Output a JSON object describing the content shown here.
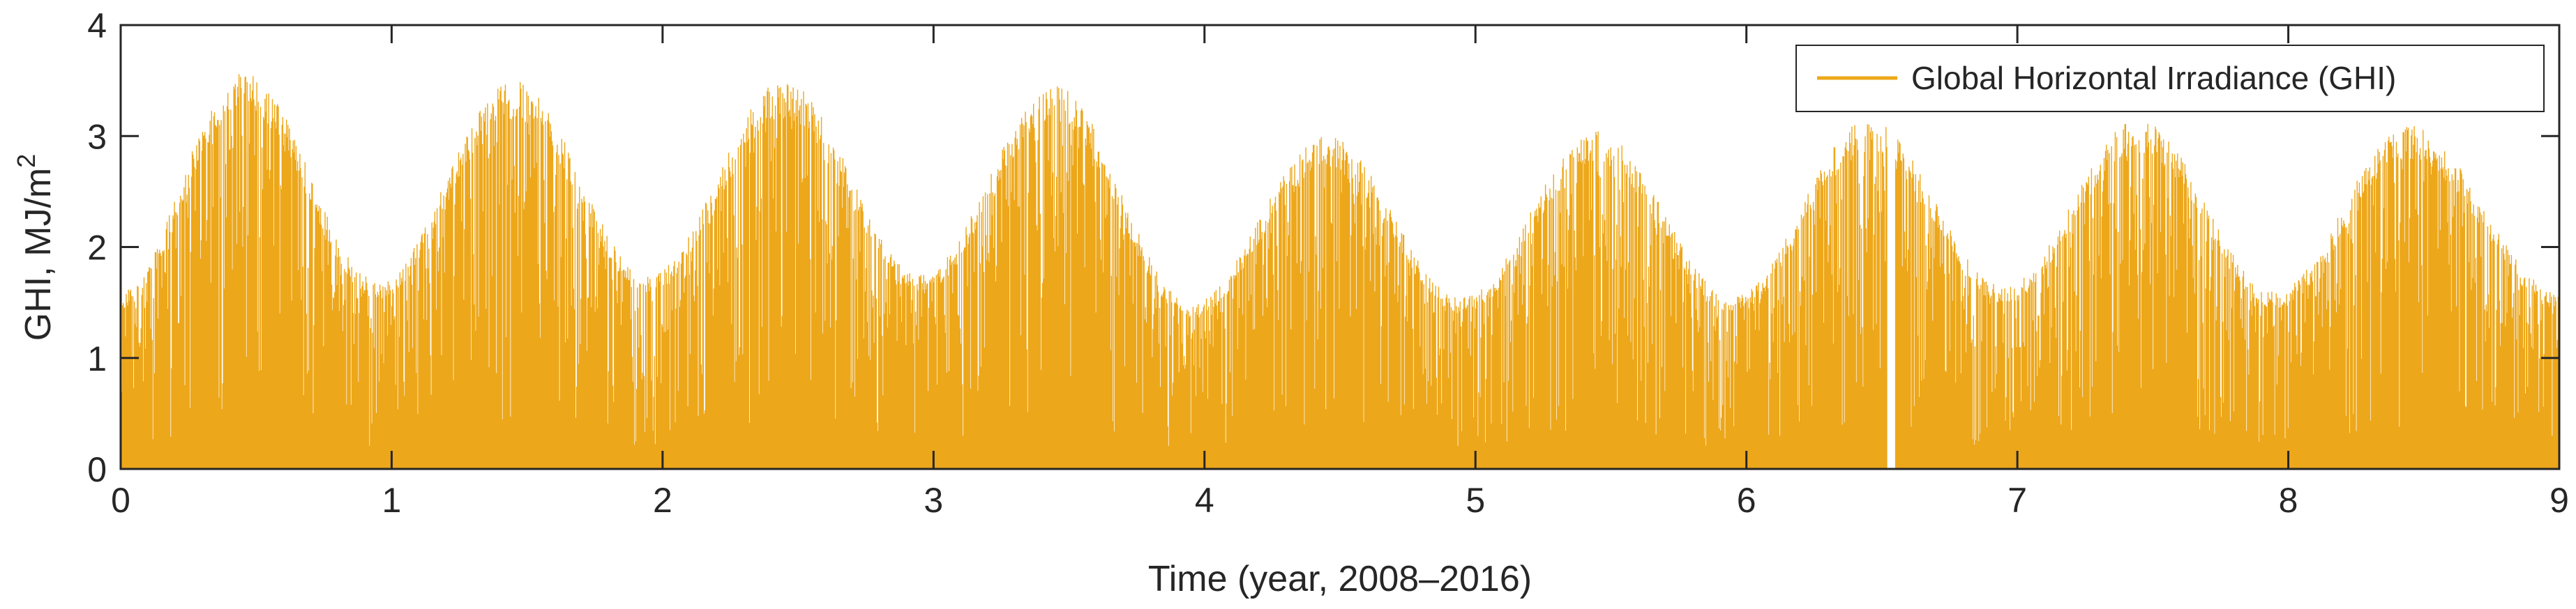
{
  "chart_data": {
    "type": "area",
    "title": "",
    "xlabel": "Time (year, 2008–2016)",
    "ylabel": {
      "main": "GHI, MJ/m",
      "superscript": "2"
    },
    "xlim": [
      0,
      9
    ],
    "ylim": [
      0,
      4
    ],
    "xticks": [
      "0",
      "1",
      "2",
      "3",
      "4",
      "5",
      "6",
      "7",
      "8",
      "9"
    ],
    "yticks": [
      "0",
      "1",
      "2",
      "3",
      "4"
    ],
    "grid": false,
    "legend_position": "top-right",
    "series": [
      {
        "name": "Global Horizontal Irradiance (GHI)",
        "color": "#EDA71A",
        "envelope_peaks": [
          {
            "year": 0.45,
            "value": 3.6
          },
          {
            "year": 1.45,
            "value": 3.5
          },
          {
            "year": 2.45,
            "value": 3.5
          },
          {
            "year": 3.45,
            "value": 3.45
          },
          {
            "year": 4.45,
            "value": 3.0
          },
          {
            "year": 5.45,
            "value": 3.05
          },
          {
            "year": 6.45,
            "value": 3.15
          },
          {
            "year": 7.45,
            "value": 3.15
          },
          {
            "year": 8.45,
            "value": 3.1
          }
        ],
        "envelope_troughs": [
          {
            "year": 0.0,
            "value": 1.6
          },
          {
            "year": 0.95,
            "value": 1.7
          },
          {
            "year": 1.95,
            "value": 1.75
          },
          {
            "year": 2.95,
            "value": 1.75
          },
          {
            "year": 3.95,
            "value": 1.5
          },
          {
            "year": 4.95,
            "value": 1.55
          },
          {
            "year": 5.95,
            "value": 1.55
          },
          {
            "year": 6.95,
            "value": 1.65
          },
          {
            "year": 7.95,
            "value": 1.6
          },
          {
            "year": 9.0,
            "value": 1.6
          }
        ],
        "data_gaps": [
          {
            "start_year": 6.52,
            "end_year": 6.55
          }
        ]
      }
    ]
  }
}
